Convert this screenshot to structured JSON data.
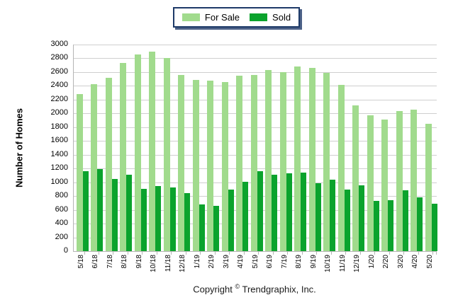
{
  "chart_data": {
    "type": "bar",
    "title": "",
    "xlabel": "",
    "ylabel": "Number of Homes",
    "ylim": [
      0,
      3000
    ],
    "ytick_step": 200,
    "grid": true,
    "legend_position": "top-center",
    "categories": [
      "5/18",
      "6/18",
      "7/18",
      "8/18",
      "9/18",
      "10/18",
      "11/18",
      "12/18",
      "1/19",
      "2/19",
      "3/19",
      "4/19",
      "5/19",
      "6/19",
      "7/19",
      "8/19",
      "9/19",
      "10/19",
      "11/19",
      "12/19",
      "1/20",
      "2/20",
      "3/20",
      "4/20",
      "5/20"
    ],
    "series": [
      {
        "name": "For Sale",
        "color": "#a1db8d",
        "values": [
          2280,
          2420,
          2520,
          2730,
          2860,
          2900,
          2810,
          2560,
          2490,
          2480,
          2460,
          2550,
          2560,
          2630,
          2600,
          2680,
          2660,
          2590,
          2410,
          2120,
          1970,
          1910,
          2030,
          2050,
          1850
        ]
      },
      {
        "name": "Sold",
        "color": "#0ba32d",
        "values": [
          1160,
          1190,
          1050,
          1110,
          900,
          950,
          920,
          840,
          680,
          660,
          890,
          1010,
          1160,
          1110,
          1130,
          1140,
          990,
          1040,
          890,
          960,
          730,
          740,
          880,
          780,
          690
        ]
      }
    ]
  },
  "footer": {
    "prefix": "Copyright",
    "symbol": "©",
    "suffix": "Trendgraphix, Inc."
  },
  "colors": {
    "grid": "#cfcfcf",
    "axis": "#b5b5b5",
    "legend_border": "#1e3a68",
    "legend_shadow": "#4c6187"
  }
}
